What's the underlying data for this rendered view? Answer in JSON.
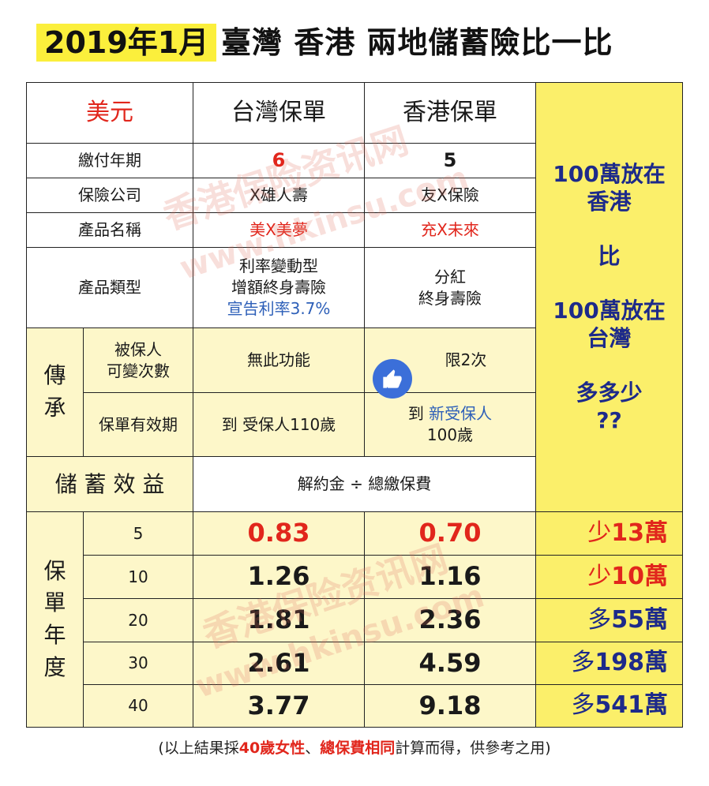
{
  "title": {
    "date": "2019年1月",
    "main": "臺灣 香港 兩地儲蓄險比一比"
  },
  "header": {
    "currency": "美元",
    "tw_col": "台灣保單",
    "hk_col": "香港保單"
  },
  "rows": {
    "pay_years": {
      "label": "繳付年期",
      "tw": "6",
      "hk": "5"
    },
    "company": {
      "label": "保險公司",
      "tw": "X雄人壽",
      "hk": "友X保險"
    },
    "product": {
      "label": "產品名稱",
      "tw": "美X美夢",
      "hk": "充X未來"
    },
    "type": {
      "label": "產品類型",
      "tw_line1": "利率變動型",
      "tw_line2": "增額終身壽險",
      "tw_line3": "宣告利率3.7%",
      "hk_line1": "分紅",
      "hk_line2": "終身壽險"
    }
  },
  "inherit": {
    "group_char1": "傳",
    "group_char2": "承",
    "insured_change_line1": "被保人",
    "insured_change_line2": "可變次數",
    "insured_tw": "無此功能",
    "insured_hk": "限2次",
    "validity_label": "保單有效期",
    "validity_tw": "到 受保人110歲",
    "validity_hk_prefix": "到",
    "validity_hk_blue": "新受保人",
    "validity_hk_line2": "100歲"
  },
  "benefit": {
    "label": "儲 蓄 效 益",
    "formula": "解約金 ÷ 總繳保費"
  },
  "side_panel": {
    "line1": "100萬放在",
    "line2": "香港",
    "line3": "比",
    "line4": "100萬放在",
    "line5": "台灣",
    "line6": "多多少",
    "line7": "??"
  },
  "policy_year_label": [
    "保",
    "單",
    "年",
    "度"
  ],
  "policy_years": [
    {
      "year": "5",
      "tw": "0.83",
      "hk": "0.70",
      "diff": "少13萬",
      "diff_prefix": "少",
      "diff_value": "13萬"
    },
    {
      "year": "10",
      "tw": "1.26",
      "hk": "1.16",
      "diff": "少10萬",
      "diff_prefix": "少",
      "diff_value": "10萬"
    },
    {
      "year": "20",
      "tw": "1.81",
      "hk": "2.36",
      "diff": "多55萬",
      "diff_prefix": "多",
      "diff_value": "55萬"
    },
    {
      "year": "30",
      "tw": "2.61",
      "hk": "4.59",
      "diff": "多198萬",
      "diff_prefix": "多",
      "diff_value": "198萬"
    },
    {
      "year": "40",
      "tw": "3.77",
      "hk": "9.18",
      "diff": "多541萬",
      "diff_prefix": "多",
      "diff_value": "541萬"
    }
  ],
  "footnote": {
    "prefix": "(以上結果採",
    "red1": "40歲女性",
    "mid": "、",
    "red2": "總保費相同",
    "suffix": "計算而得，供參考之用)"
  },
  "watermarks": {
    "cn": "香港保险资讯网",
    "url": "www.hkinsu.com"
  },
  "icons": {
    "like": "thumbs-up-icon"
  },
  "colors": {
    "yellow_header": "#fbef3c",
    "pale_yellow": "#fdf7c9",
    "side_yellow": "#fbef6a",
    "red": "#e1261c",
    "blue": "#2d5fb8",
    "navy": "#1d2a8a"
  }
}
